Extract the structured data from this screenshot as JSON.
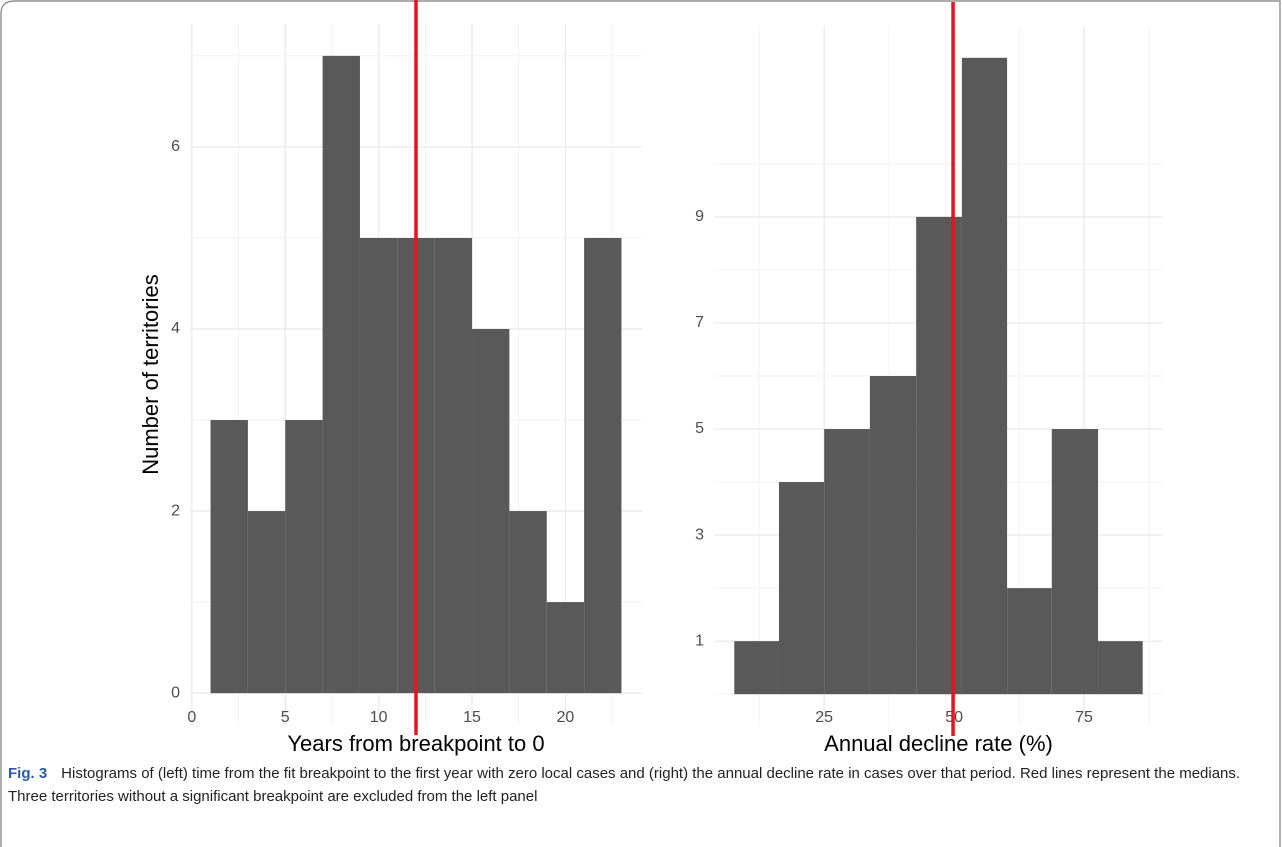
{
  "chart_data": [
    {
      "type": "histogram",
      "xlabel": "Years from breakpoint to 0",
      "ylabel": "Number of territories",
      "bins": [
        1,
        3,
        5,
        7,
        9,
        11,
        13,
        15,
        17,
        19,
        21,
        23
      ],
      "values": [
        3,
        2,
        3,
        7,
        5,
        5,
        5,
        4,
        2,
        1,
        5
      ],
      "color": "#595959",
      "vline": 12,
      "vline_color": "#e8141c",
      "xlim": [
        -0.1,
        24.1
      ],
      "xticks": [
        0,
        5,
        10,
        15,
        20
      ],
      "ylim": [
        -0.35,
        7.35
      ],
      "yticks": [
        0,
        2,
        4,
        6
      ],
      "grid": true
    },
    {
      "type": "histogram",
      "xlabel": "Annual decline rate (%)",
      "bins": [
        7.7,
        16.3,
        25,
        33.8,
        42.7,
        51.5,
        60.2,
        68.8,
        77.7,
        86.3
      ],
      "values": [
        1,
        4,
        5,
        6,
        9,
        12,
        2,
        5,
        1
      ],
      "color": "#595959",
      "vline": 49.8,
      "vline_color": "#e8141c",
      "xlim": [
        3.8,
        90.2
      ],
      "xticks": [
        25,
        50,
        75
      ],
      "ylim": [
        -0.6,
        12.6
      ],
      "yticks": [
        1,
        3,
        5,
        7,
        9
      ],
      "grid": true
    }
  ],
  "caption": {
    "label": "Fig. 3",
    "text": "Histograms of (left) time from the fit breakpoint to the first year with zero local cases and (right) the annual decline rate in cases over that period. Red lines represent the medians. Three territories without a significant breakpoint are excluded from the left panel"
  }
}
